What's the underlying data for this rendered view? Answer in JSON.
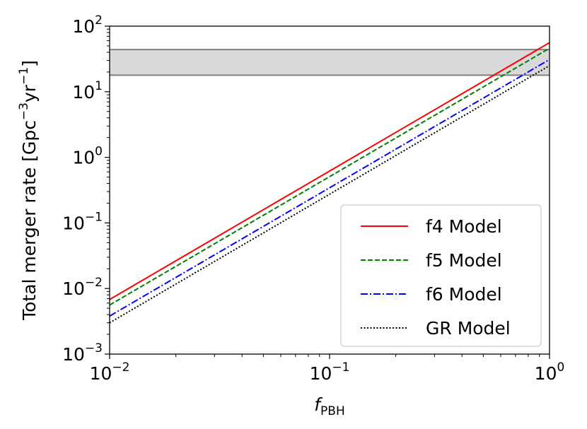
{
  "chart_data": {
    "type": "line",
    "title": "",
    "xlabel": "f",
    "xlabel_sub": "PBH",
    "ylabel_pre": "Total merger rate [Gpc",
    "ylabel_exp1": "−3",
    "ylabel_mid": "yr",
    "ylabel_exp2": "−1",
    "ylabel_post": "]",
    "xscale": "log",
    "yscale": "log",
    "xlim": [
      0.01,
      1
    ],
    "ylim": [
      0.001,
      100
    ],
    "x_ticks": [
      {
        "value": 0.01,
        "base": "10",
        "exp": "−2"
      },
      {
        "value": 0.1,
        "base": "10",
        "exp": "−1"
      },
      {
        "value": 1,
        "base": "10",
        "exp": "0"
      }
    ],
    "y_ticks": [
      {
        "value": 0.001,
        "base": "10",
        "exp": "−3"
      },
      {
        "value": 0.01,
        "base": "10",
        "exp": "−2"
      },
      {
        "value": 0.1,
        "base": "10",
        "exp": "−1"
      },
      {
        "value": 1,
        "base": "10",
        "exp": "0"
      },
      {
        "value": 10,
        "base": "10",
        "exp": "1"
      },
      {
        "value": 100,
        "base": "10",
        "exp": "2"
      }
    ],
    "grid": false,
    "legend_position": "lower-right",
    "band": {
      "y_low": 17.9,
      "y_high": 44,
      "color": "#d9d9d9",
      "edge_color": "#808080"
    },
    "series": [
      {
        "name": "f4 Model",
        "color": "#ff0000",
        "dash": "solid",
        "x": [
          0.01,
          1
        ],
        "y": [
          0.0068,
          56
        ]
      },
      {
        "name": "f5 Model",
        "color": "#008000",
        "dash": "dashed",
        "x": [
          0.01,
          1
        ],
        "y": [
          0.0056,
          46
        ]
      },
      {
        "name": "f6 Model",
        "color": "#0000ff",
        "dash": "dashdot",
        "x": [
          0.01,
          1
        ],
        "y": [
          0.0038,
          31
        ]
      },
      {
        "name": "GR Model",
        "color": "#000000",
        "dash": "dotted",
        "x": [
          0.01,
          1
        ],
        "y": [
          0.003,
          25
        ]
      }
    ]
  }
}
